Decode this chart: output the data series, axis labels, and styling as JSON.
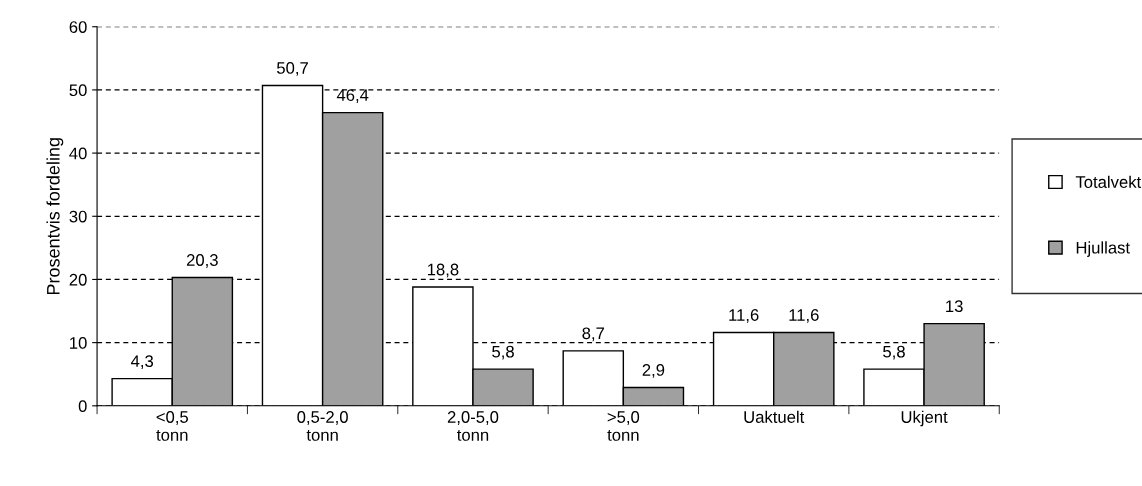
{
  "chart_data": {
    "type": "bar",
    "ylabel": "Prosentvis fordeling",
    "categories": [
      "<0,5\ntonn",
      "0,5-2,0\ntonn",
      "2,0-5,0\ntonn",
      ">5,0\ntonn",
      "Uaktuelt",
      "Ukjent"
    ],
    "series": [
      {
        "name": "Totalvekt",
        "color": "#ffffff",
        "values": [
          4.3,
          50.7,
          18.8,
          8.7,
          11.6,
          5.8
        ],
        "value_labels": [
          "4,3",
          "50,7",
          "18,8",
          "8,7",
          "11,6",
          "5,8"
        ]
      },
      {
        "name": "Hjullast",
        "color": "#a0a0a0",
        "values": [
          20.3,
          46.4,
          5.8,
          2.9,
          11.6,
          13
        ],
        "value_labels": [
          "20,3",
          "46,4",
          "5,8",
          "2,9",
          "11,6",
          "13"
        ]
      }
    ],
    "ylim": [
      0,
      60
    ],
    "yticks": [
      0,
      10,
      20,
      30,
      40,
      50,
      60
    ],
    "grid": "y",
    "legend": "right"
  }
}
